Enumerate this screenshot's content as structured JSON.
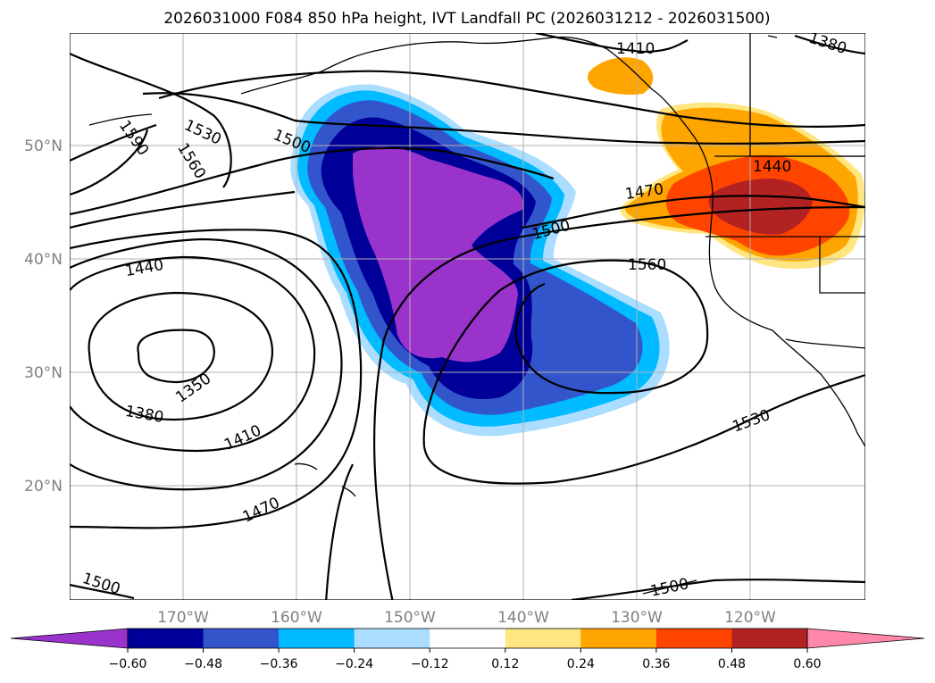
{
  "title": "2026031000 F084 850 hPa height, IVT Landfall PC (2026031212 - 2026031500)",
  "map": {
    "lon_labels": [
      "170°W",
      "160°W",
      "150°W",
      "140°W",
      "130°W",
      "120°W"
    ],
    "lat_labels": [
      "50°N",
      "40°N",
      "30°N",
      "20°N"
    ],
    "height_contour_labels": [
      "1410",
      "1380",
      "1590",
      "1530",
      "1560",
      "1500",
      "1470",
      "1440",
      "1500",
      "1560",
      "1440",
      "1350",
      "1380",
      "1410",
      "1530",
      "1470",
      "1500",
      "1500"
    ],
    "contour_interval": 30,
    "colors": {
      "neg_extend": "#9933cc",
      "pos_extend": "#ff88aa"
    }
  },
  "colorbar": {
    "tick_labels": [
      "−0.60",
      "−0.48",
      "−0.36",
      "−0.24",
      "−0.12",
      "0.12",
      "0.24",
      "0.36",
      "0.48",
      "0.60"
    ],
    "levels": [
      -0.6,
      -0.48,
      -0.36,
      -0.24,
      -0.12,
      0.12,
      0.24,
      0.36,
      0.48,
      0.6
    ],
    "bin_colors": [
      "#9933cc",
      "#000099",
      "#3355cc",
      "#00bbff",
      "#aaddff",
      "#ffffff",
      "#ffe680",
      "#ffa500",
      "#ff4400",
      "#b22222",
      "#ff88aa"
    ]
  }
}
